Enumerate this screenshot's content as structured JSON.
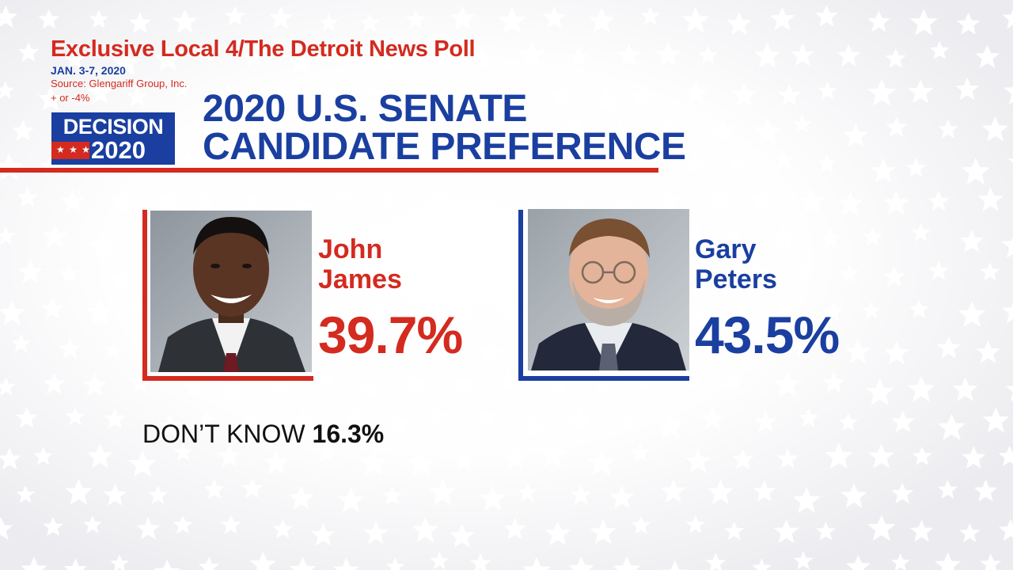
{
  "poll": {
    "title": "Exclusive Local 4/The Detroit News Poll",
    "dates": "JAN. 3-7, 2020",
    "source": "Source: Glengariff Group, Inc.",
    "margin": "+ or -4%"
  },
  "logo": {
    "line1": "DECISION",
    "line2": "2020"
  },
  "headline": {
    "line1": "2020 U.S. SENATE",
    "line2": "CANDIDATE PREFERENCE"
  },
  "candidates": [
    {
      "first": "John",
      "last": "James",
      "percent": "39.7%",
      "color": "#d42a1f"
    },
    {
      "first": "Gary",
      "last": "Peters",
      "percent": "43.5%",
      "color": "#1a3fa0"
    }
  ],
  "undecided": {
    "label": "DON’T KNOW",
    "value": "16.3%"
  },
  "colors": {
    "red": "#d42a1f",
    "blue": "#1a3fa0",
    "background": "#f4f4f6"
  }
}
